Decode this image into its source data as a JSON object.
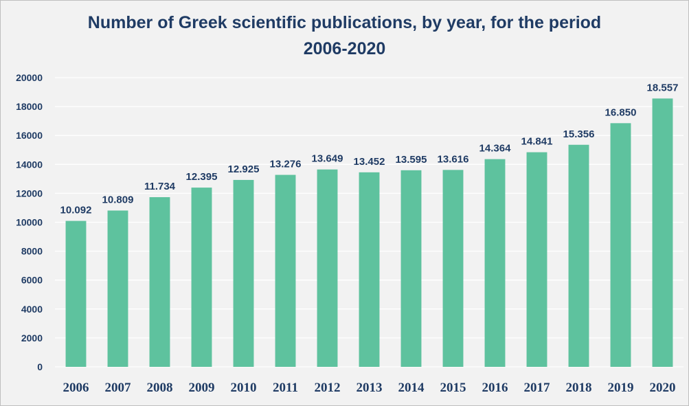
{
  "chart_data": {
    "type": "bar",
    "title_line1": "Number of Greek scientific publications, by year, for the period",
    "title_line2": "2006-2020",
    "xlabel": "",
    "ylabel": "",
    "categories": [
      "2006",
      "2007",
      "2008",
      "2009",
      "2010",
      "2011",
      "2012",
      "2013",
      "2014",
      "2015",
      "2016",
      "2017",
      "2018",
      "2019",
      "2020"
    ],
    "values": [
      10092,
      10809,
      11734,
      12395,
      12925,
      13276,
      13649,
      13452,
      13595,
      13616,
      14364,
      14841,
      15356,
      16850,
      18557
    ],
    "data_labels": [
      "10.092",
      "10.809",
      "11.734",
      "12.395",
      "12.925",
      "13.276",
      "13.649",
      "13.452",
      "13.595",
      "13.616",
      "14.364",
      "14.841",
      "15.356",
      "16.850",
      "18.557"
    ],
    "y_ticks": [
      "0",
      "2000",
      "4000",
      "6000",
      "8000",
      "10000",
      "12000",
      "14000",
      "16000",
      "18000",
      "20000"
    ],
    "ylim": [
      0,
      20000
    ],
    "grid": true,
    "legend": "none",
    "colors": {
      "bar": "#5ec29e",
      "text": "#1f3b64",
      "grid": "#ffffff",
      "background": "#f2f2f2"
    }
  }
}
